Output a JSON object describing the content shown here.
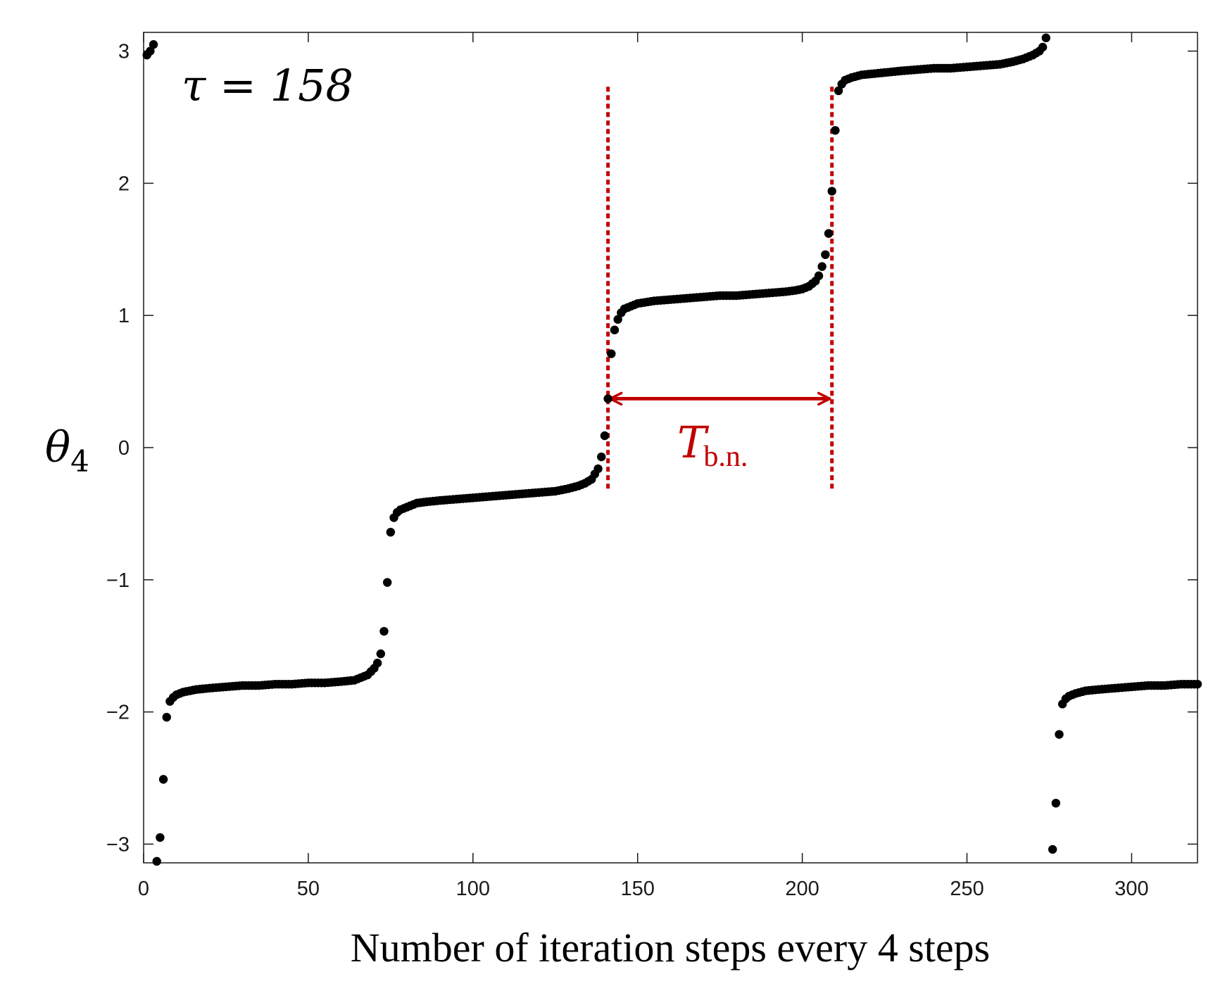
{
  "chart_data": {
    "type": "scatter",
    "title": "",
    "xlabel": "Number of iteration steps every 4 steps",
    "ylabel": "θ",
    "ylabel_subscript": "4",
    "xlim": [
      0,
      320
    ],
    "ylim": [
      -3.14159,
      3.14159
    ],
    "x_ticks": [
      0,
      50,
      100,
      150,
      200,
      250,
      300
    ],
    "y_ticks": [
      -3,
      -2,
      -1,
      0,
      1,
      2,
      3
    ],
    "x_tick_labels": [
      "0",
      "50",
      "100",
      "150",
      "200",
      "250",
      "300"
    ],
    "y_tick_labels": [
      "−3",
      "−2",
      "−1",
      "0",
      "1",
      "2",
      "3"
    ],
    "grid": false,
    "marker_color": "#000000",
    "annotations": {
      "tau_label": "τ = 158",
      "period_label": "T",
      "period_subscript": "b.n.",
      "period_color": "#c00000",
      "period_start_x": 141,
      "period_end_x": 209,
      "period_arrow_y": 0.37,
      "guide_line_y_range": [
        -0.33,
        2.73
      ]
    },
    "series": [
      {
        "points": [
          [
            1,
            2.97
          ],
          [
            2,
            3.0
          ],
          [
            3,
            3.05
          ],
          [
            4,
            -3.13
          ],
          [
            5,
            -2.95
          ],
          [
            6,
            -2.51
          ],
          [
            7,
            -2.04
          ],
          [
            8,
            -1.92
          ],
          [
            9,
            -1.89
          ],
          [
            10,
            -1.87
          ],
          [
            12,
            -1.85
          ],
          [
            14,
            -1.84
          ],
          [
            16,
            -1.83
          ],
          [
            20,
            -1.82
          ],
          [
            25,
            -1.81
          ],
          [
            30,
            -1.8
          ],
          [
            35,
            -1.8
          ],
          [
            40,
            -1.79
          ],
          [
            45,
            -1.79
          ],
          [
            50,
            -1.78
          ],
          [
            55,
            -1.78
          ],
          [
            60,
            -1.77
          ],
          [
            64,
            -1.76
          ],
          [
            66,
            -1.74
          ],
          [
            68,
            -1.72
          ],
          [
            70,
            -1.67
          ],
          [
            71,
            -1.63
          ],
          [
            72,
            -1.56
          ],
          [
            73,
            -1.39
          ],
          [
            74,
            -1.02
          ],
          [
            75,
            -0.64
          ],
          [
            76,
            -0.53
          ],
          [
            77,
            -0.49
          ],
          [
            78,
            -0.47
          ],
          [
            80,
            -0.45
          ],
          [
            83,
            -0.42
          ],
          [
            86,
            -0.41
          ],
          [
            90,
            -0.4
          ],
          [
            95,
            -0.39
          ],
          [
            100,
            -0.38
          ],
          [
            105,
            -0.37
          ],
          [
            110,
            -0.36
          ],
          [
            115,
            -0.35
          ],
          [
            120,
            -0.34
          ],
          [
            125,
            -0.33
          ],
          [
            129,
            -0.31
          ],
          [
            132,
            -0.29
          ],
          [
            134,
            -0.27
          ],
          [
            136,
            -0.24
          ],
          [
            137,
            -0.2
          ],
          [
            138,
            -0.16
          ],
          [
            139,
            -0.07
          ],
          [
            140,
            0.09
          ],
          [
            141,
            0.37
          ],
          [
            142,
            0.71
          ],
          [
            143,
            0.89
          ],
          [
            144,
            0.97
          ],
          [
            145,
            1.02
          ],
          [
            146,
            1.05
          ],
          [
            148,
            1.07
          ],
          [
            150,
            1.09
          ],
          [
            155,
            1.11
          ],
          [
            160,
            1.12
          ],
          [
            165,
            1.13
          ],
          [
            170,
            1.14
          ],
          [
            175,
            1.15
          ],
          [
            180,
            1.15
          ],
          [
            185,
            1.16
          ],
          [
            190,
            1.17
          ],
          [
            195,
            1.18
          ],
          [
            198,
            1.19
          ],
          [
            200,
            1.2
          ],
          [
            202,
            1.22
          ],
          [
            204,
            1.26
          ],
          [
            205,
            1.3
          ],
          [
            206,
            1.37
          ],
          [
            207,
            1.46
          ],
          [
            208,
            1.62
          ],
          [
            209,
            1.94
          ],
          [
            210,
            2.4
          ],
          [
            211,
            2.7
          ],
          [
            212,
            2.75
          ],
          [
            213,
            2.78
          ],
          [
            215,
            2.8
          ],
          [
            218,
            2.82
          ],
          [
            222,
            2.83
          ],
          [
            226,
            2.84
          ],
          [
            230,
            2.85
          ],
          [
            235,
            2.86
          ],
          [
            240,
            2.87
          ],
          [
            245,
            2.87
          ],
          [
            250,
            2.88
          ],
          [
            255,
            2.89
          ],
          [
            260,
            2.9
          ],
          [
            264,
            2.92
          ],
          [
            267,
            2.94
          ],
          [
            270,
            2.97
          ],
          [
            272,
            3.0
          ],
          [
            273,
            3.03
          ],
          [
            274,
            3.1
          ],
          [
            276,
            -3.04
          ],
          [
            277,
            -2.69
          ],
          [
            278,
            -2.17
          ],
          [
            279,
            -1.94
          ],
          [
            280,
            -1.9
          ],
          [
            281,
            -1.88
          ],
          [
            283,
            -1.86
          ],
          [
            286,
            -1.84
          ],
          [
            290,
            -1.83
          ],
          [
            295,
            -1.82
          ],
          [
            300,
            -1.81
          ],
          [
            305,
            -1.8
          ],
          [
            310,
            -1.8
          ],
          [
            315,
            -1.79
          ],
          [
            320,
            -1.79
          ]
        ]
      }
    ]
  }
}
